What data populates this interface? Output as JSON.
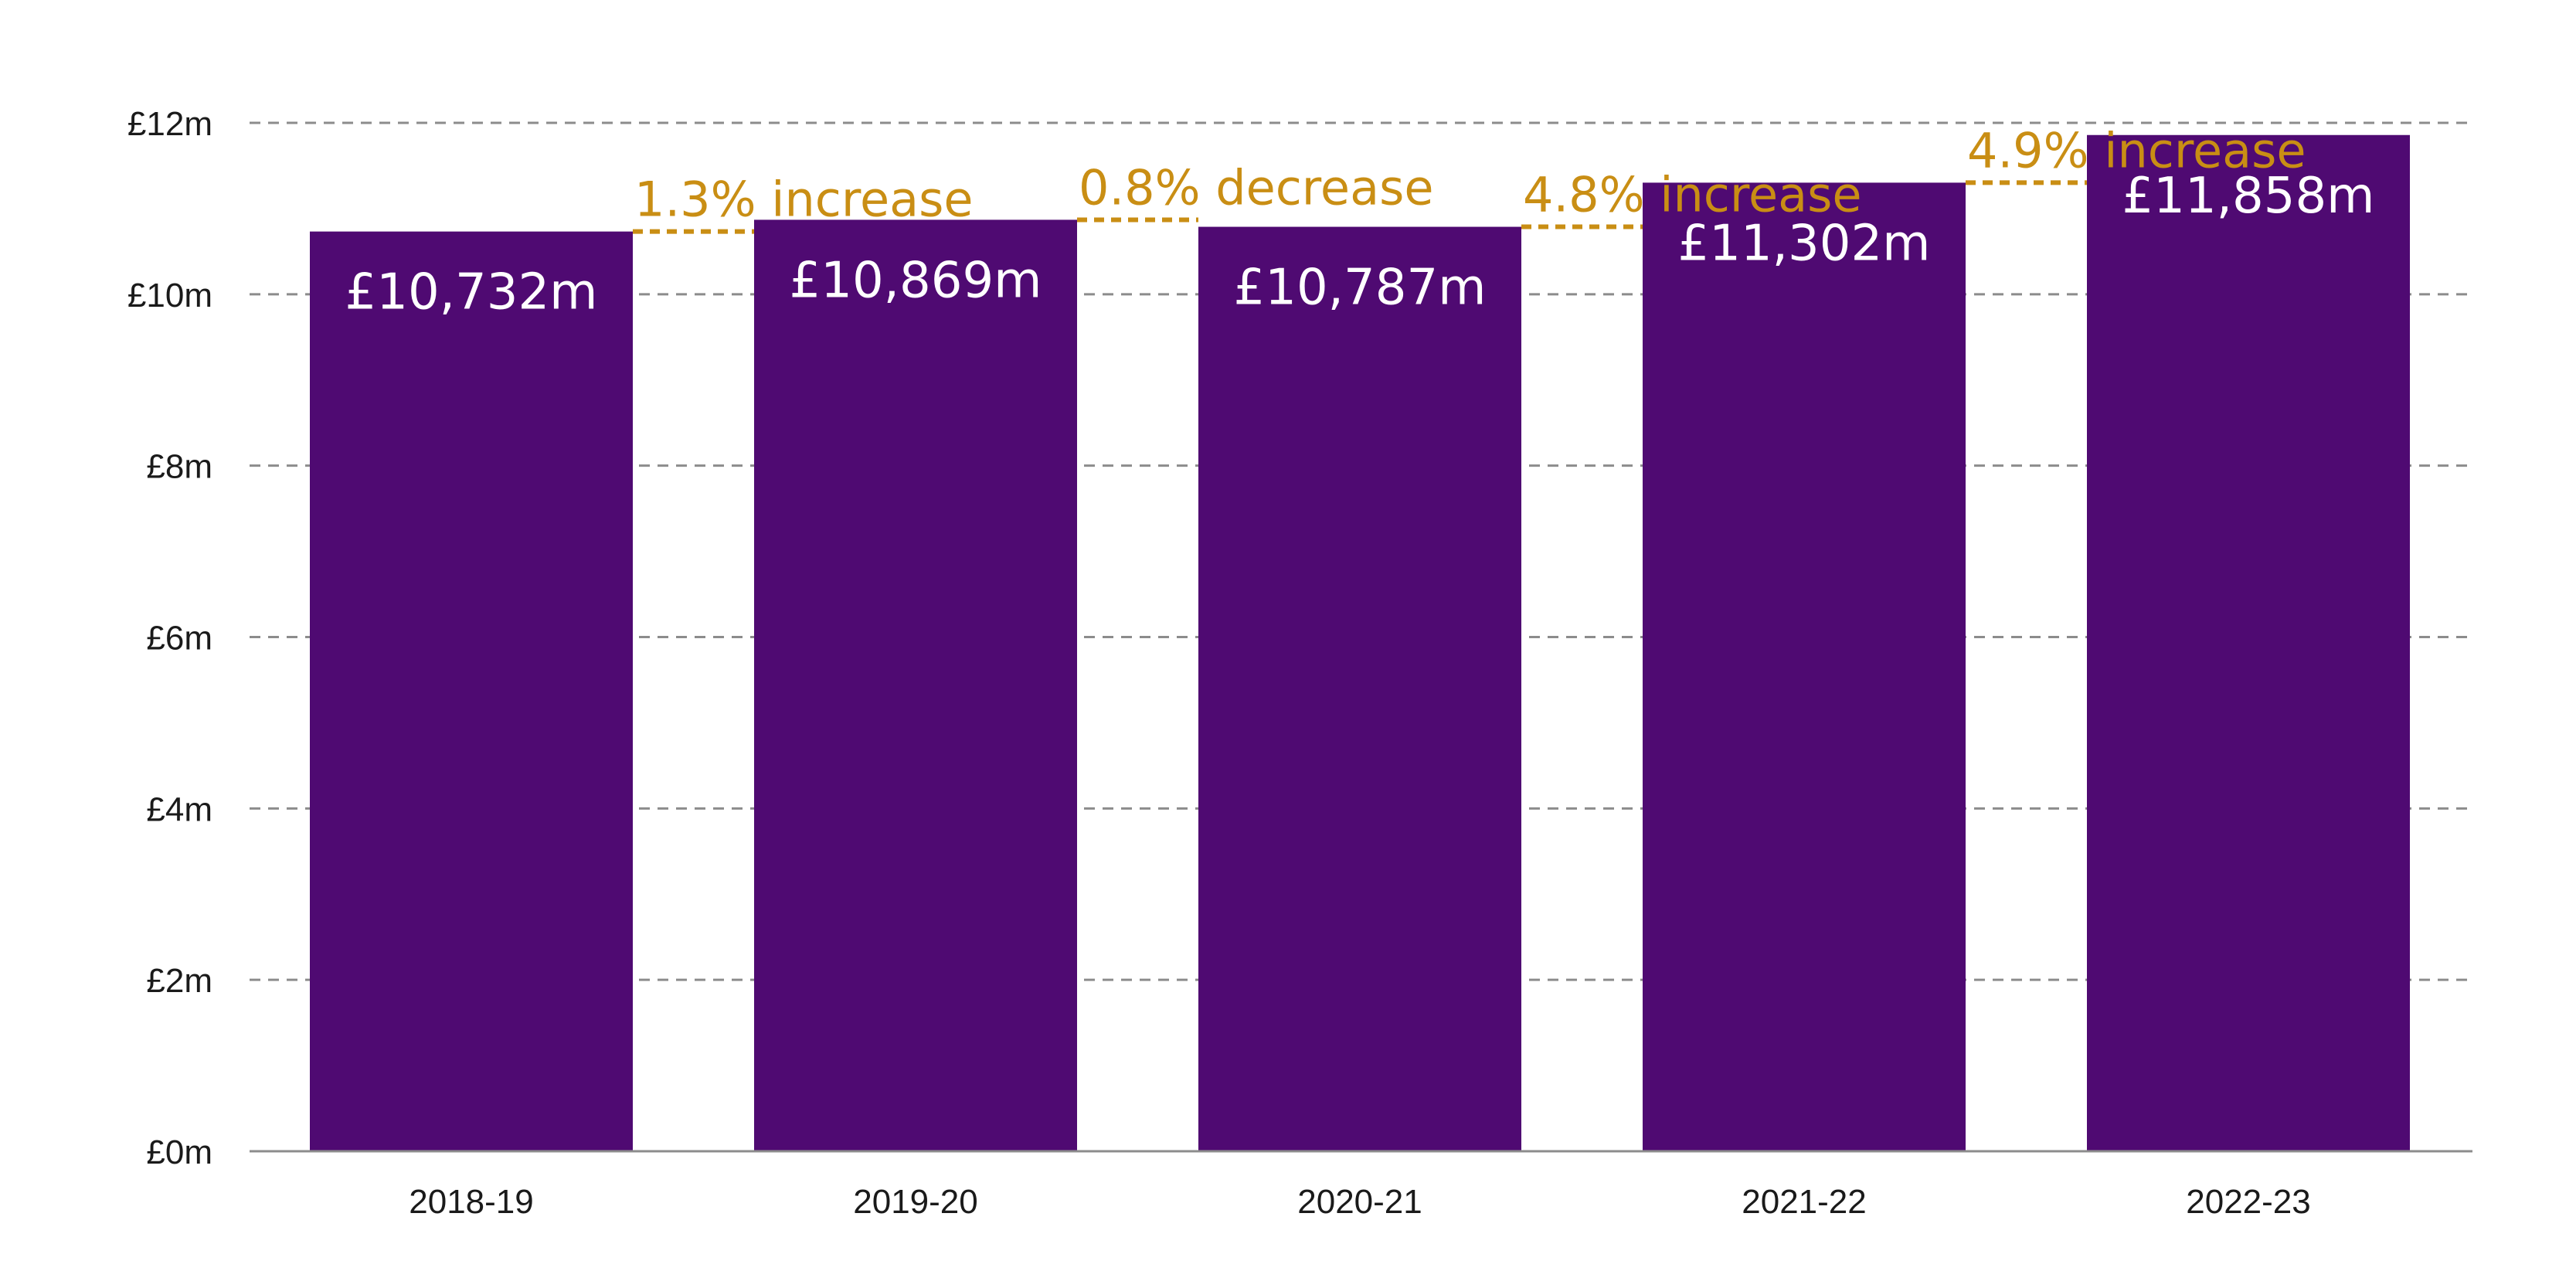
{
  "colors": {
    "bar": "#4f0a72",
    "change_annotation": "#c98e14",
    "gridline": "#8c8c8c",
    "axis_line": "#8c8c8c",
    "tick_text": "#1a1a1a",
    "data_label_text": "#ffffff",
    "background": "#ffffff"
  },
  "chart_data": {
    "type": "bar",
    "title": "",
    "xlabel": "",
    "ylabel": "",
    "categories": [
      "2018-19",
      "2019-20",
      "2020-21",
      "2021-22",
      "2022-23"
    ],
    "values": [
      10.732,
      10.869,
      10.787,
      11.302,
      11.858
    ],
    "value_unit": "£m",
    "data_labels": [
      "£10,732m",
      "£10,869m",
      "£10,787m",
      "£11,302m",
      "£11,858m"
    ],
    "change_annotations": [
      {
        "from": "2018-19",
        "to": "2019-20",
        "text": "1.3% increase"
      },
      {
        "from": "2019-20",
        "to": "2020-21",
        "text": "0.8% decrease"
      },
      {
        "from": "2020-21",
        "to": "2021-22",
        "text": "4.8% increase"
      },
      {
        "from": "2021-22",
        "to": "2022-23",
        "text": "4.9% increase"
      }
    ],
    "ylim": [
      0,
      12
    ],
    "yticks": [
      0,
      2,
      4,
      6,
      8,
      10,
      12
    ],
    "ytick_labels": [
      "£0m",
      "£2m",
      "£4m",
      "£6m",
      "£8m",
      "£10m",
      "£12m"
    ],
    "grid": true,
    "grid_style": "dashed horizontal",
    "legend": "none"
  }
}
